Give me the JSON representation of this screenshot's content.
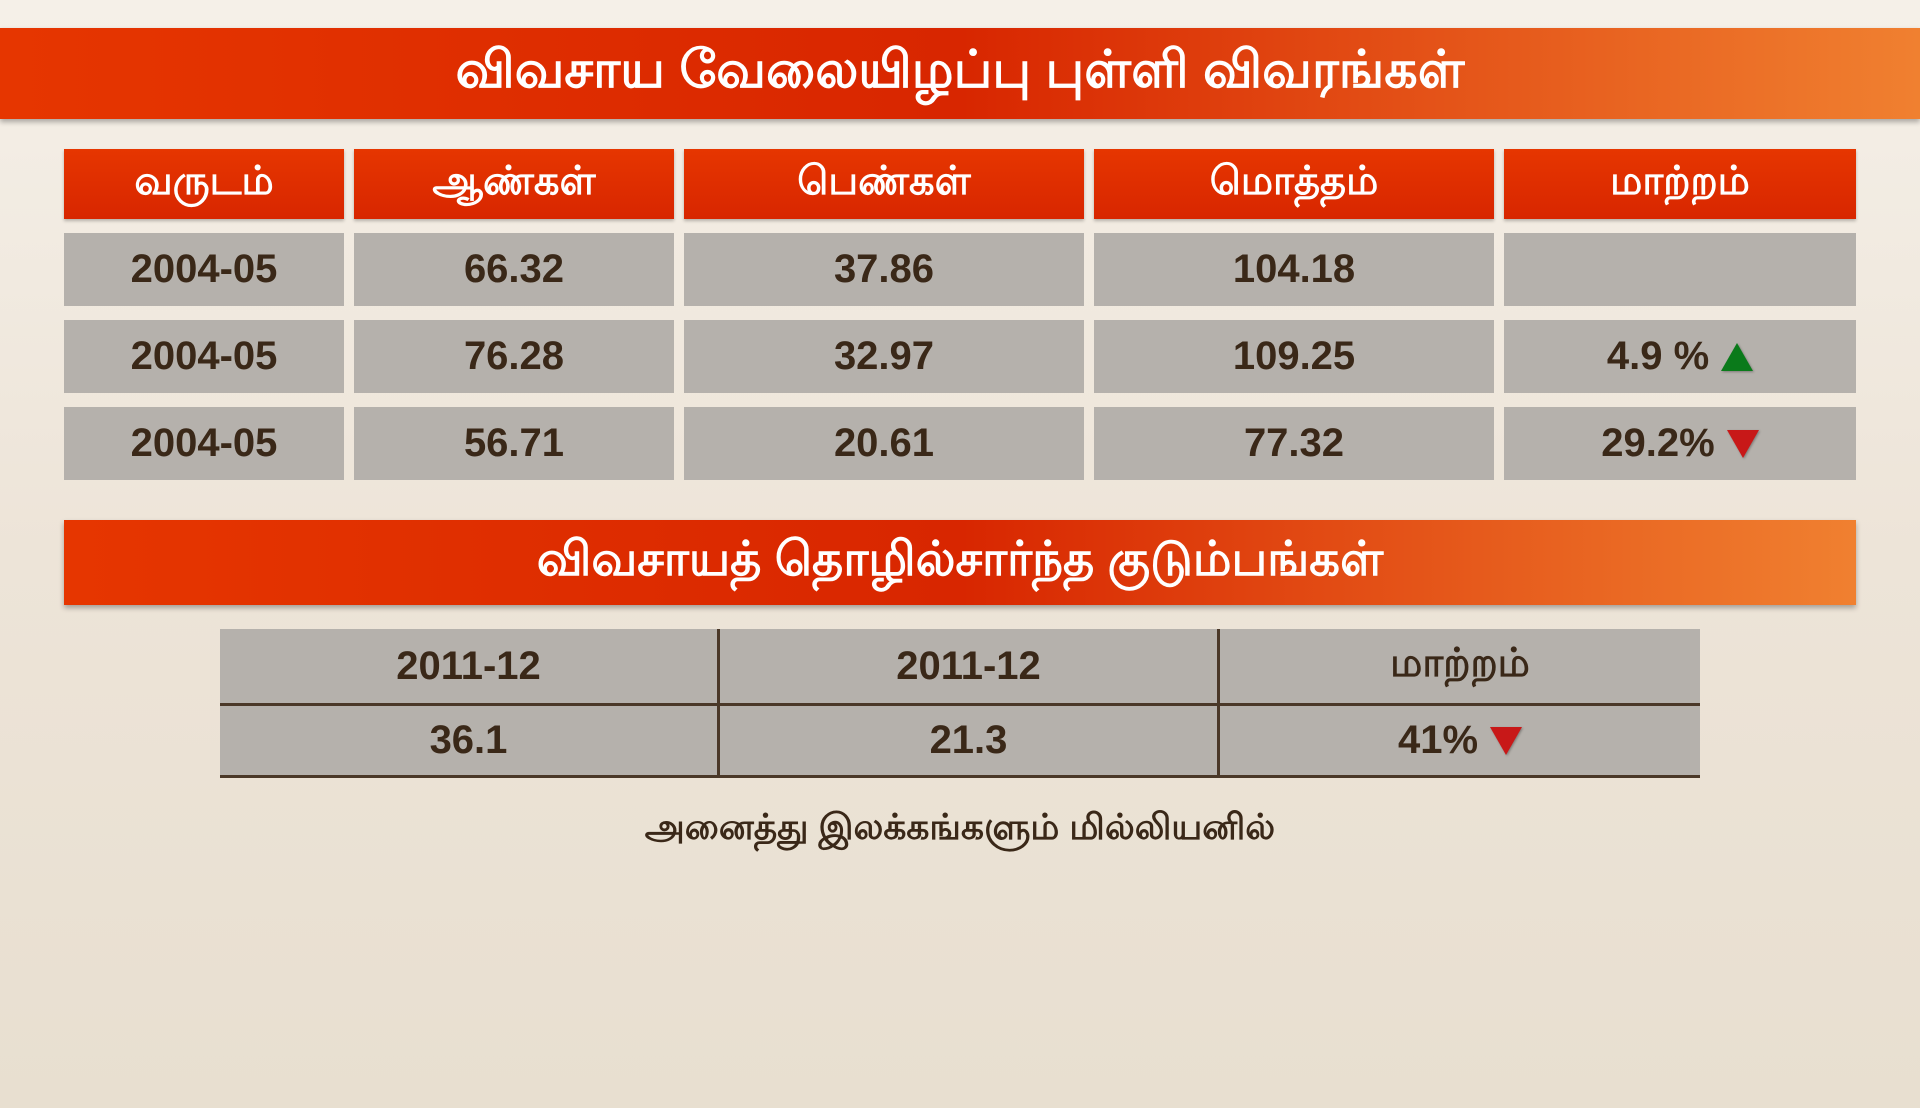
{
  "title_main": "விவசாய வேலையிழப்பு புள்ளி விவரங்கள்",
  "table1": {
    "headers": [
      "வருடம்",
      "ஆண்கள்",
      "பெண்கள்",
      "மொத்தம்",
      "மாற்றம்"
    ],
    "rows": [
      {
        "year": "2004-05",
        "male": "66.32",
        "female": "37.86",
        "total": "104.18",
        "change": "",
        "dir": ""
      },
      {
        "year": "2004-05",
        "male": "76.28",
        "female": "32.97",
        "total": "109.25",
        "change": "4.9 %",
        "dir": "up"
      },
      {
        "year": "2004-05",
        "male": "56.71",
        "female": "20.61",
        "total": "77.32",
        "change": "29.2%",
        "dir": "down"
      }
    ]
  },
  "title_sub": "விவசாயத் தொழில்சார்ந்த குடும்பங்கள்",
  "table2": {
    "headers": [
      "2011-12",
      "2011-12",
      "மாற்றம்"
    ],
    "row": {
      "v1": "36.1",
      "v2": "21.3",
      "change": "41%",
      "dir": "down"
    }
  },
  "footnote": "அனைத்து இலக்கங்களும் மில்லியனில்",
  "colors": {
    "header_red": "#d82600",
    "cell_gray": "#b5b1ac",
    "text_brown": "#3a2818",
    "up_green": "#0a7a1a",
    "down_red": "#c81818"
  },
  "typography": {
    "title_fontsize": 52,
    "subtitle_fontsize": 48,
    "cell_fontsize": 40,
    "footnote_fontsize": 36,
    "weight": "bold"
  }
}
